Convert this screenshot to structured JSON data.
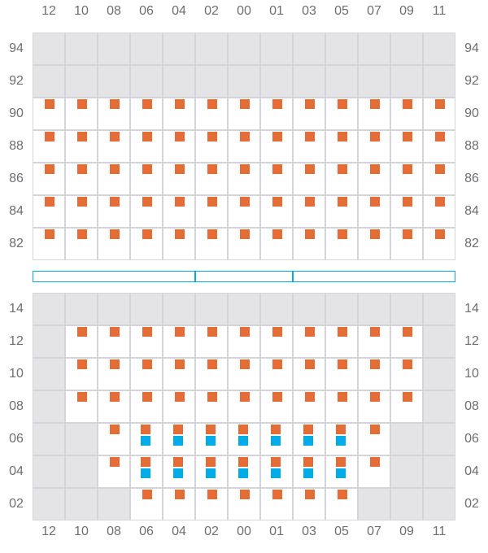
{
  "colors": {
    "occupied": "#e36c37",
    "secondary": "#00ade8",
    "unavailable": "#e4e4e6",
    "grid": "#d4d4d8",
    "label": "#6e6e73"
  },
  "columns": [
    "12",
    "10",
    "08",
    "06",
    "04",
    "02",
    "00",
    "01",
    "03",
    "05",
    "07",
    "09",
    "11"
  ],
  "legend_key": {
    "x": "unavailable",
    "o": "orange marker",
    "ob": "orange and blue markers",
    "": "empty"
  },
  "top_section": {
    "rows": [
      {
        "label": "94",
        "cells": [
          "x",
          "x",
          "x",
          "x",
          "x",
          "x",
          "x",
          "x",
          "x",
          "x",
          "x",
          "x",
          "x"
        ]
      },
      {
        "label": "92",
        "cells": [
          "x",
          "x",
          "x",
          "x",
          "x",
          "x",
          "x",
          "x",
          "x",
          "x",
          "x",
          "x",
          "x"
        ]
      },
      {
        "label": "90",
        "cells": [
          "o",
          "o",
          "o",
          "o",
          "o",
          "o",
          "o",
          "o",
          "o",
          "o",
          "o",
          "o",
          "o"
        ]
      },
      {
        "label": "88",
        "cells": [
          "o",
          "o",
          "o",
          "o",
          "o",
          "o",
          "o",
          "o",
          "o",
          "o",
          "o",
          "o",
          "o"
        ]
      },
      {
        "label": "86",
        "cells": [
          "o",
          "o",
          "o",
          "o",
          "o",
          "o",
          "o",
          "o",
          "o",
          "o",
          "o",
          "o",
          "o"
        ]
      },
      {
        "label": "84",
        "cells": [
          "o",
          "o",
          "o",
          "o",
          "o",
          "o",
          "o",
          "o",
          "o",
          "o",
          "o",
          "o",
          "o"
        ]
      },
      {
        "label": "82",
        "cells": [
          "o",
          "o",
          "o",
          "o",
          "o",
          "o",
          "o",
          "o",
          "o",
          "o",
          "o",
          "o",
          "o"
        ]
      }
    ]
  },
  "bottom_section": {
    "rows": [
      {
        "label": "14",
        "cells": [
          "x",
          "x",
          "x",
          "x",
          "x",
          "x",
          "x",
          "x",
          "x",
          "x",
          "x",
          "x",
          "x"
        ]
      },
      {
        "label": "12",
        "cells": [
          "x",
          "o",
          "o",
          "o",
          "o",
          "o",
          "o",
          "o",
          "o",
          "o",
          "o",
          "o",
          "x"
        ]
      },
      {
        "label": "10",
        "cells": [
          "x",
          "o",
          "o",
          "o",
          "o",
          "o",
          "o",
          "o",
          "o",
          "o",
          "o",
          "o",
          "x"
        ]
      },
      {
        "label": "08",
        "cells": [
          "x",
          "o",
          "o",
          "o",
          "o",
          "o",
          "o",
          "o",
          "o",
          "o",
          "o",
          "o",
          "x"
        ]
      },
      {
        "label": "06",
        "cells": [
          "x",
          "x",
          "o",
          "ob",
          "ob",
          "ob",
          "ob",
          "ob",
          "ob",
          "ob",
          "o",
          "x",
          "x"
        ]
      },
      {
        "label": "04",
        "cells": [
          "x",
          "x",
          "o",
          "ob",
          "ob",
          "ob",
          "ob",
          "ob",
          "ob",
          "ob",
          "o",
          "x",
          "x"
        ]
      },
      {
        "label": "02",
        "cells": [
          "x",
          "x",
          "x",
          "o",
          "o",
          "o",
          "o",
          "o",
          "o",
          "o",
          "x",
          "x",
          "x"
        ]
      }
    ]
  }
}
